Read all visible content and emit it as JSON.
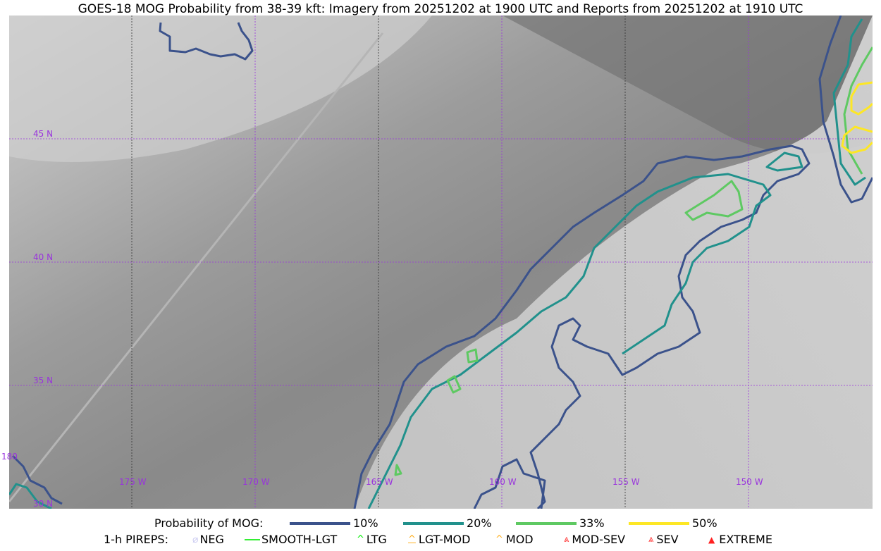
{
  "title": "GOES-18 MOG Probability from 38-39 kft: Imagery from 20251202 at 1900 UTC and Reports from 20251202 at 1910 UTC",
  "map": {
    "lat_labels": [
      "45 N",
      "40 N",
      "35 N",
      "30 N"
    ],
    "lon_labels": [
      "180",
      "175 W",
      "170 W",
      "165 W",
      "160 W",
      "155 W",
      "150 W"
    ],
    "grid_color": "#9933dd"
  },
  "legend": {
    "prob_title": "Probability of MOG:",
    "prob_items": [
      {
        "label": "10%",
        "color": "#3b528b"
      },
      {
        "label": "20%",
        "color": "#21918c"
      },
      {
        "label": "33%",
        "color": "#5ec962"
      },
      {
        "label": "50%",
        "color": "#fde725"
      }
    ],
    "pirep_title": "1-h PIREPS:",
    "pirep_items": [
      {
        "label": "NEG",
        "color": "#c8c8f0",
        "icon": "neg-icon"
      },
      {
        "label": "SMOOTH-LGT",
        "color": "#33ee33",
        "icon": "line-icon"
      },
      {
        "label": "LTG",
        "color": "#00ee00",
        "icon": "caret-icon"
      },
      {
        "label": "LGT-MOD",
        "color": "#ffb020",
        "icon": "hat-icon"
      },
      {
        "label": "MOD",
        "color": "#ffb020",
        "icon": "caret-icon"
      },
      {
        "label": "MOD-SEV",
        "color": "#ff3030",
        "icon": "double-caret-icon"
      },
      {
        "label": "SEV",
        "color": "#ff3030",
        "icon": "double-caret-icon"
      },
      {
        "label": "EXTREME",
        "color": "#ff2020",
        "icon": "triangle-icon"
      }
    ]
  }
}
